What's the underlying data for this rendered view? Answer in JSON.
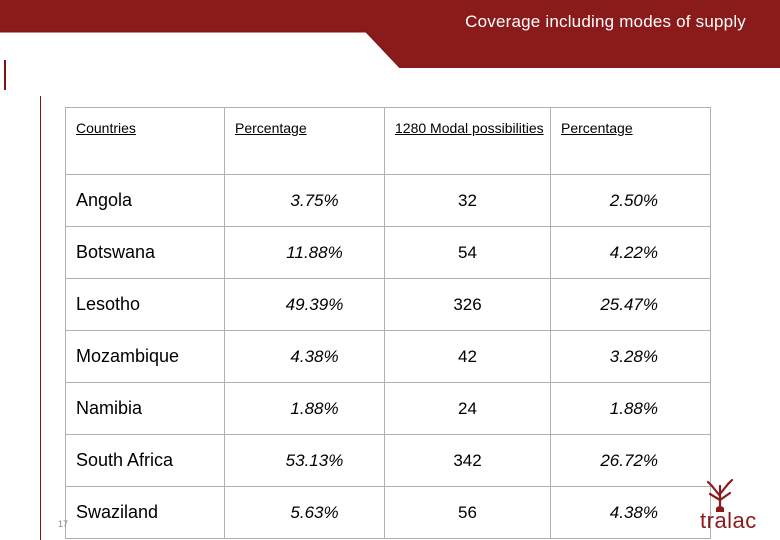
{
  "header": {
    "title": "Coverage including modes of supply"
  },
  "table": {
    "columns": [
      "Countries",
      "Percentage",
      "1280 Modal possibilities",
      "Percentage"
    ],
    "rows": [
      {
        "country": "Angola",
        "percentage": "3.75%",
        "modal": "32",
        "modal_percentage": "2.50%"
      },
      {
        "country": "Botswana",
        "percentage": "11.88%",
        "modal": "54",
        "modal_percentage": "4.22%"
      },
      {
        "country": "Lesotho",
        "percentage": "49.39%",
        "modal": "326",
        "modal_percentage": "25.47%"
      },
      {
        "country": "Mozambique",
        "percentage": "4.38%",
        "modal": "42",
        "modal_percentage": "3.28%"
      },
      {
        "country": "Namibia",
        "percentage": "1.88%",
        "modal": "24",
        "modal_percentage": "1.88%"
      },
      {
        "country": "South Africa",
        "percentage": "53.13%",
        "modal": "342",
        "modal_percentage": "26.72%"
      },
      {
        "country": "Swaziland",
        "percentage": "5.63%",
        "modal": "56",
        "modal_percentage": "4.38%"
      }
    ]
  },
  "footer": {
    "page_number": "17",
    "logo_text": "tralac",
    "logo_icon": "baobab-tree-icon"
  },
  "colors": {
    "banner": "#8b1a1a",
    "banner_dark": "#6e1214"
  }
}
